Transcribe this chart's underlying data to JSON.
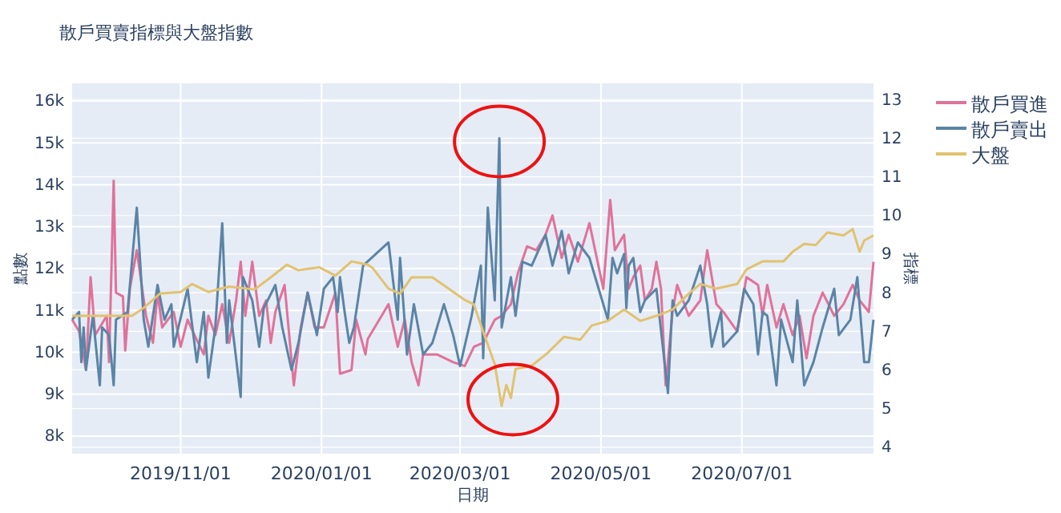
{
  "chart_data": {
    "type": "line",
    "title": "散戶買賣指標與大盤指數",
    "xlabel": "日期",
    "ylabel": "點數",
    "y2label": "指標",
    "xlim": [
      "2019-09-15",
      "2020-08-27"
    ],
    "xticks": [
      {
        "value": "2019-11-01",
        "label": "2019/11/01"
      },
      {
        "value": "2020-01-01",
        "label": "2020/01/01"
      },
      {
        "value": "2020-03-01",
        "label": "2020/03/01"
      },
      {
        "value": "2020-05-01",
        "label": "2020/05/01"
      },
      {
        "value": "2020-07-01",
        "label": "2020/07/01"
      }
    ],
    "ylim": [
      7580,
      16420
    ],
    "yticks": [
      {
        "value": 8000,
        "label": "8k"
      },
      {
        "value": 9000,
        "label": "9k"
      },
      {
        "value": 10000,
        "label": "10k"
      },
      {
        "value": 11000,
        "label": "11k"
      },
      {
        "value": 12000,
        "label": "12k"
      },
      {
        "value": 13000,
        "label": "13k"
      },
      {
        "value": 14000,
        "label": "14k"
      },
      {
        "value": 15000,
        "label": "15k"
      },
      {
        "value": 16000,
        "label": "16k"
      }
    ],
    "y2lim": [
      3.83,
      13.42
    ],
    "y2ticks": [
      4,
      5,
      6,
      7,
      8,
      9,
      10,
      11,
      12,
      13
    ],
    "grid": true,
    "legend": "top right",
    "line_style": "solid",
    "marker": "none",
    "series": [
      {
        "name": "散戶買進",
        "color": "#e0729a",
        "axis": "y2",
        "x": [
          "2019-09-15",
          "2019-09-18",
          "2019-09-21",
          "2019-09-23",
          "2019-09-25",
          "2019-09-30",
          "2019-10-01",
          "2019-10-03",
          "2019-10-04",
          "2019-10-07",
          "2019-10-08",
          "2019-10-10",
          "2019-10-13",
          "2019-10-17",
          "2019-10-20",
          "2019-10-22",
          "2019-10-24",
          "2019-10-29",
          "2019-11-01",
          "2019-11-04",
          "2019-11-07",
          "2019-11-11",
          "2019-11-13",
          "2019-11-16",
          "2019-11-19",
          "2019-11-22",
          "2019-11-25",
          "2019-11-27",
          "2019-11-29",
          "2019-12-02",
          "2019-12-05",
          "2019-12-08",
          "2019-12-10",
          "2019-12-12",
          "2019-12-16",
          "2019-12-20",
          "2019-12-23",
          "2019-12-26",
          "2019-12-29",
          "2020-01-02",
          "2020-01-07",
          "2020-01-09",
          "2020-01-14",
          "2020-01-16",
          "2020-01-20",
          "2020-01-21",
          "2020-01-30",
          "2020-02-03",
          "2020-02-06",
          "2020-02-09",
          "2020-02-12",
          "2020-02-14",
          "2020-02-20",
          "2020-02-27",
          "2020-03-03",
          "2020-03-07",
          "2020-03-11",
          "2020-03-16",
          "2020-03-19",
          "2020-03-23",
          "2020-03-26",
          "2020-03-30",
          "2020-04-03",
          "2020-04-07",
          "2020-04-10",
          "2020-04-14",
          "2020-04-17",
          "2020-04-21",
          "2020-04-26",
          "2020-05-02",
          "2020-05-05",
          "2020-05-07",
          "2020-05-11",
          "2020-05-13",
          "2020-05-15",
          "2020-05-18",
          "2020-05-20",
          "2020-05-23",
          "2020-05-25",
          "2020-05-27",
          "2020-05-29",
          "2020-06-01",
          "2020-06-03",
          "2020-06-08",
          "2020-06-13",
          "2020-06-16",
          "2020-06-20",
          "2020-06-23",
          "2020-06-29",
          "2020-07-01",
          "2020-07-03",
          "2020-07-08",
          "2020-07-10",
          "2020-07-12",
          "2020-07-16",
          "2020-07-19",
          "2020-07-23",
          "2020-07-26",
          "2020-07-29",
          "2020-08-01",
          "2020-08-05",
          "2020-08-10",
          "2020-08-14",
          "2020-08-18",
          "2020-08-21",
          "2020-08-25",
          "2020-08-27"
        ],
        "values": [
          7.3,
          7.0,
          6.0,
          8.4,
          6.9,
          7.4,
          6.2,
          10.9,
          8.0,
          7.9,
          6.5,
          8.1,
          9.1,
          7.4,
          6.7,
          8.0,
          7.1,
          7.5,
          6.6,
          7.3,
          6.9,
          6.4,
          7.4,
          6.9,
          7.7,
          6.7,
          7.8,
          8.8,
          7.4,
          8.8,
          7.4,
          7.8,
          6.7,
          7.5,
          8.2,
          5.6,
          7.1,
          8.0,
          7.1,
          7.1,
          8.0,
          5.9,
          6.0,
          7.3,
          6.4,
          6.8,
          7.7,
          6.6,
          7.3,
          6.2,
          5.6,
          6.4,
          6.4,
          6.2,
          6.1,
          6.6,
          6.7,
          7.3,
          7.4,
          7.7,
          8.5,
          9.2,
          9.1,
          9.5,
          10.0,
          8.9,
          9.5,
          8.8,
          9.8,
          8.1,
          10.4,
          9.1,
          9.5,
          8.1,
          8.4,
          8.7,
          7.8,
          8.1,
          8.8,
          8.1,
          5.6,
          7.5,
          8.2,
          7.4,
          7.8,
          9.1,
          7.7,
          7.5,
          7.0,
          7.7,
          8.4,
          8.2,
          7.4,
          8.2,
          7.1,
          7.7,
          6.9,
          7.4,
          6.3,
          7.4,
          8.0,
          7.4,
          7.7,
          8.2,
          7.8,
          7.5,
          8.8
        ]
      },
      {
        "name": "散戶賣出",
        "color": "#5b84a6",
        "axis": "y2",
        "x": [
          "2019-09-15",
          "2019-09-18",
          "2019-09-19",
          "2019-09-20",
          "2019-09-21",
          "2019-09-24",
          "2019-09-27",
          "2019-09-28",
          "2019-10-01",
          "2019-10-03",
          "2019-10-04",
          "2019-10-09",
          "2019-10-13",
          "2019-10-16",
          "2019-10-18",
          "2019-10-22",
          "2019-10-25",
          "2019-10-28",
          "2019-10-29",
          "2019-11-04",
          "2019-11-08",
          "2019-11-11",
          "2019-11-13",
          "2019-11-16",
          "2019-11-19",
          "2019-11-21",
          "2019-11-22",
          "2019-11-27",
          "2019-11-28",
          "2019-12-02",
          "2019-12-05",
          "2019-12-07",
          "2019-12-12",
          "2019-12-15",
          "2019-12-19",
          "2019-12-22",
          "2019-12-26",
          "2019-12-30",
          "2020-01-02",
          "2020-01-06",
          "2020-01-08",
          "2020-01-09",
          "2020-01-11",
          "2020-01-13",
          "2020-01-15",
          "2020-01-19",
          "2020-01-30",
          "2020-02-03",
          "2020-02-04",
          "2020-02-07",
          "2020-02-10",
          "2020-02-14",
          "2020-02-18",
          "2020-02-23",
          "2020-02-27",
          "2020-03-01",
          "2020-03-06",
          "2020-03-10",
          "2020-03-11",
          "2020-03-13",
          "2020-03-16",
          "2020-03-18",
          "2020-03-19",
          "2020-03-23",
          "2020-03-25",
          "2020-03-28",
          "2020-04-01",
          "2020-04-07",
          "2020-04-10",
          "2020-04-14",
          "2020-04-17",
          "2020-04-21",
          "2020-04-26",
          "2020-05-04",
          "2020-05-06",
          "2020-05-08",
          "2020-05-11",
          "2020-05-12",
          "2020-05-13",
          "2020-05-15",
          "2020-05-18",
          "2020-05-20",
          "2020-05-25",
          "2020-05-30",
          "2020-06-01",
          "2020-06-03",
          "2020-06-08",
          "2020-06-13",
          "2020-06-16",
          "2020-06-18",
          "2020-06-22",
          "2020-06-23",
          "2020-06-29",
          "2020-07-02",
          "2020-07-06",
          "2020-07-08",
          "2020-07-10",
          "2020-07-12",
          "2020-07-16",
          "2020-07-18",
          "2020-07-23",
          "2020-07-25",
          "2020-07-28",
          "2020-08-01",
          "2020-08-05",
          "2020-08-10",
          "2020-08-12",
          "2020-08-17",
          "2020-08-20",
          "2020-08-23",
          "2020-08-25",
          "2020-08-27"
        ],
        "values": [
          7.3,
          7.5,
          6.2,
          7.1,
          6.0,
          7.4,
          5.6,
          7.1,
          6.9,
          5.6,
          7.3,
          7.5,
          10.2,
          7.3,
          6.6,
          8.2,
          7.3,
          7.7,
          6.6,
          8.1,
          6.2,
          7.5,
          5.8,
          7.1,
          9.8,
          6.7,
          7.8,
          5.3,
          8.4,
          7.8,
          6.6,
          7.6,
          8.2,
          7.1,
          6.0,
          6.7,
          8.0,
          6.9,
          8.1,
          8.4,
          7.5,
          8.4,
          7.5,
          6.7,
          7.1,
          8.7,
          9.3,
          7.3,
          8.9,
          6.4,
          7.7,
          6.4,
          6.7,
          7.7,
          6.9,
          6.1,
          7.4,
          8.7,
          6.3,
          10.2,
          7.8,
          12.0,
          7.1,
          8.4,
          7.4,
          8.8,
          8.7,
          9.5,
          8.7,
          9.6,
          8.5,
          9.3,
          8.9,
          7.3,
          8.9,
          8.5,
          9.0,
          7.6,
          8.7,
          8.9,
          7.5,
          7.8,
          8.1,
          5.4,
          7.8,
          7.4,
          7.8,
          8.7,
          7.7,
          6.6,
          7.5,
          6.6,
          7.0,
          8.1,
          7.7,
          6.4,
          7.5,
          7.4,
          5.6,
          7.3,
          6.2,
          7.8,
          5.6,
          6.2,
          7.1,
          8.1,
          6.9,
          7.3,
          8.4,
          6.2,
          6.2,
          7.3
        ]
      },
      {
        "name": "大盤",
        "color": "#e2c26f",
        "x": [
          "2019-09-15",
          "2019-09-30",
          "2019-10-11",
          "2019-10-16",
          "2019-10-23",
          "2019-11-01",
          "2019-11-06",
          "2019-11-13",
          "2019-11-22",
          "2019-12-03",
          "2019-12-10",
          "2019-12-17",
          "2019-12-22",
          "2019-12-31",
          "2020-01-07",
          "2020-01-14",
          "2020-01-21",
          "2020-01-23",
          "2020-01-30",
          "2020-02-04",
          "2020-02-09",
          "2020-02-18",
          "2020-02-25",
          "2020-03-03",
          "2020-03-07",
          "2020-03-11",
          "2020-03-16",
          "2020-03-19",
          "2020-03-21",
          "2020-03-23",
          "2020-03-25",
          "2020-04-01",
          "2020-04-08",
          "2020-04-15",
          "2020-04-22",
          "2020-04-27",
          "2020-05-04",
          "2020-05-11",
          "2020-05-18",
          "2020-05-25",
          "2020-06-01",
          "2020-06-08",
          "2020-06-13",
          "2020-06-20",
          "2020-06-29",
          "2020-07-03",
          "2020-07-10",
          "2020-07-19",
          "2020-07-23",
          "2020-07-28",
          "2020-08-02",
          "2020-08-07",
          "2020-08-14",
          "2020-08-18",
          "2020-08-21",
          "2020-08-23",
          "2020-08-27"
        ],
        "values": [
          10870,
          10870,
          10870,
          11060,
          11400,
          11440,
          11630,
          11440,
          11570,
          11500,
          11790,
          12090,
          11960,
          12030,
          11830,
          12170,
          12090,
          12020,
          11520,
          11400,
          11790,
          11790,
          11520,
          11250,
          11140,
          10490,
          9720,
          8720,
          9220,
          8910,
          9600,
          9680,
          9990,
          10370,
          10300,
          10640,
          10750,
          11020,
          10750,
          10870,
          11020,
          11400,
          11630,
          11520,
          11630,
          11980,
          12170,
          12170,
          12400,
          12590,
          12560,
          12860,
          12790,
          12940,
          12400,
          12670,
          12790
        ]
      }
    ]
  }
}
